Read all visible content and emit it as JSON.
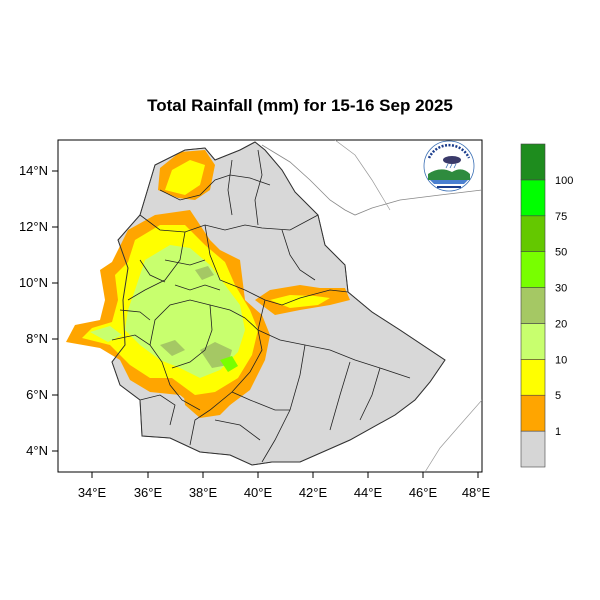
{
  "map": {
    "title": "Total Rainfall (mm) for 15-16 Sep 2025",
    "lat_labels": [
      "14°N",
      "12°N",
      "10°N",
      "8°N",
      "6°N",
      "4°N"
    ],
    "lon_labels": [
      "34°E",
      "36°E",
      "38°E",
      "40°E",
      "42°E",
      "44°E",
      "46°E",
      "48°E"
    ],
    "lon_range": [
      32.8,
      48.2
    ],
    "lat_range": [
      3.2,
      15.0
    ],
    "land_color": "#d8d8d8",
    "logo": "ethiopian-meteorology-institute-logo"
  },
  "legend": {
    "labels": [
      "1",
      "5",
      "10",
      "20",
      "30",
      "50",
      "75",
      "100"
    ],
    "colors": [
      "#d6d6d6",
      "#ffa500",
      "#ffff00",
      "#c8ff6e",
      "#a5c864",
      "#78ff00",
      "#64c800",
      "#00ff00",
      "#1e8c1e"
    ]
  }
}
